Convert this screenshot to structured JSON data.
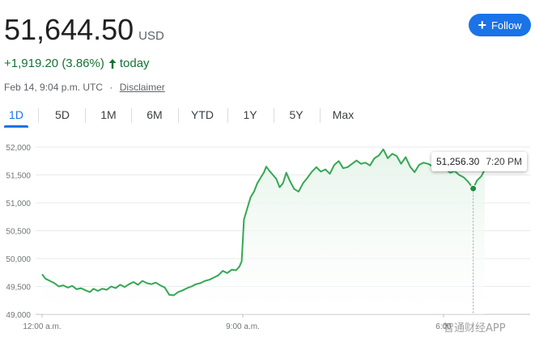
{
  "quote": {
    "price": "51,644.50",
    "currency": "USD",
    "change": "+1,919.20 (3.86%)",
    "change_period": "today",
    "timestamp": "Feb 14, 9:04 p.m. UTC",
    "separator": "·",
    "disclaimer": "Disclaimer",
    "up_color": "#137333"
  },
  "follow_button": {
    "label": "Follow",
    "icon": "plus-icon",
    "color": "#1a73e8"
  },
  "tabs": [
    {
      "label": "1D",
      "active": true
    },
    {
      "label": "5D"
    },
    {
      "label": "1M"
    },
    {
      "label": "6M"
    },
    {
      "label": "YTD"
    },
    {
      "label": "1Y"
    },
    {
      "label": "5Y"
    },
    {
      "label": "Max"
    }
  ],
  "tooltip": {
    "value": "51,256.30",
    "time": "7:20 PM"
  },
  "watermark": "智通财经APP",
  "chart_data": {
    "type": "area",
    "line_color": "#34a853",
    "fill_color": "#e6f4ea",
    "grid": true,
    "y_ticks": [
      "52,000",
      "51,500",
      "51,000",
      "50,500",
      "50,000",
      "49,500",
      "49,000"
    ],
    "ylim": [
      49000,
      52000
    ],
    "x_ticks": [
      {
        "label": "12:00 a.m.",
        "hour": 0
      },
      {
        "label": "9:00 a.m.",
        "hour": 9
      },
      {
        "label": "6:00",
        "hour": 18
      }
    ],
    "xlim_hours": [
      0,
      24
    ],
    "highlight": {
      "hour": 19.33,
      "value": 51256.3
    },
    "series": [
      {
        "values": [
          [
            0.0,
            49720
          ],
          [
            0.15,
            49640
          ],
          [
            0.35,
            49600
          ],
          [
            0.55,
            49560
          ],
          [
            0.75,
            49500
          ],
          [
            0.95,
            49520
          ],
          [
            1.15,
            49480
          ],
          [
            1.35,
            49510
          ],
          [
            1.55,
            49450
          ],
          [
            1.75,
            49470
          ],
          [
            1.95,
            49430
          ],
          [
            2.15,
            49400
          ],
          [
            2.3,
            49460
          ],
          [
            2.5,
            49420
          ],
          [
            2.7,
            49460
          ],
          [
            2.9,
            49440
          ],
          [
            3.1,
            49500
          ],
          [
            3.3,
            49470
          ],
          [
            3.5,
            49530
          ],
          [
            3.7,
            49490
          ],
          [
            3.9,
            49540
          ],
          [
            4.1,
            49580
          ],
          [
            4.3,
            49530
          ],
          [
            4.5,
            49600
          ],
          [
            4.7,
            49560
          ],
          [
            4.9,
            49540
          ],
          [
            5.1,
            49570
          ],
          [
            5.3,
            49520
          ],
          [
            5.5,
            49480
          ],
          [
            5.7,
            49350
          ],
          [
            5.9,
            49340
          ],
          [
            6.1,
            49400
          ],
          [
            6.3,
            49430
          ],
          [
            6.5,
            49470
          ],
          [
            6.7,
            49500
          ],
          [
            6.9,
            49540
          ],
          [
            7.1,
            49560
          ],
          [
            7.3,
            49600
          ],
          [
            7.5,
            49620
          ],
          [
            7.7,
            49660
          ],
          [
            7.9,
            49700
          ],
          [
            8.1,
            49780
          ],
          [
            8.3,
            49740
          ],
          [
            8.5,
            49800
          ],
          [
            8.7,
            49790
          ],
          [
            8.85,
            49860
          ],
          [
            8.95,
            49950
          ],
          [
            9.05,
            50700
          ],
          [
            9.2,
            50900
          ],
          [
            9.35,
            51100
          ],
          [
            9.5,
            51200
          ],
          [
            9.65,
            51350
          ],
          [
            9.8,
            51450
          ],
          [
            9.95,
            51550
          ],
          [
            10.05,
            51650
          ],
          [
            10.2,
            51570
          ],
          [
            10.35,
            51500
          ],
          [
            10.5,
            51430
          ],
          [
            10.65,
            51280
          ],
          [
            10.8,
            51350
          ],
          [
            10.95,
            51540
          ],
          [
            11.1,
            51400
          ],
          [
            11.3,
            51250
          ],
          [
            11.5,
            51200
          ],
          [
            11.7,
            51350
          ],
          [
            11.9,
            51450
          ],
          [
            12.1,
            51560
          ],
          [
            12.3,
            51640
          ],
          [
            12.5,
            51560
          ],
          [
            12.7,
            51600
          ],
          [
            12.9,
            51520
          ],
          [
            13.1,
            51680
          ],
          [
            13.3,
            51750
          ],
          [
            13.5,
            51620
          ],
          [
            13.7,
            51640
          ],
          [
            13.9,
            51700
          ],
          [
            14.1,
            51760
          ],
          [
            14.3,
            51700
          ],
          [
            14.5,
            51720
          ],
          [
            14.7,
            51670
          ],
          [
            14.9,
            51800
          ],
          [
            15.1,
            51850
          ],
          [
            15.3,
            51960
          ],
          [
            15.5,
            51800
          ],
          [
            15.7,
            51880
          ],
          [
            15.9,
            51840
          ],
          [
            16.1,
            51700
          ],
          [
            16.3,
            51820
          ],
          [
            16.5,
            51650
          ],
          [
            16.7,
            51550
          ],
          [
            16.9,
            51680
          ],
          [
            17.1,
            51720
          ],
          [
            17.3,
            51700
          ],
          [
            17.5,
            51660
          ],
          [
            17.7,
            51600
          ],
          [
            17.9,
            51660
          ],
          [
            18.1,
            51600
          ],
          [
            18.3,
            51540
          ],
          [
            18.5,
            51570
          ],
          [
            18.7,
            51500
          ],
          [
            18.9,
            51460
          ],
          [
            19.1,
            51380
          ],
          [
            19.33,
            51256
          ],
          [
            19.5,
            51400
          ],
          [
            19.7,
            51480
          ],
          [
            19.85,
            51600
          ]
        ]
      }
    ]
  }
}
